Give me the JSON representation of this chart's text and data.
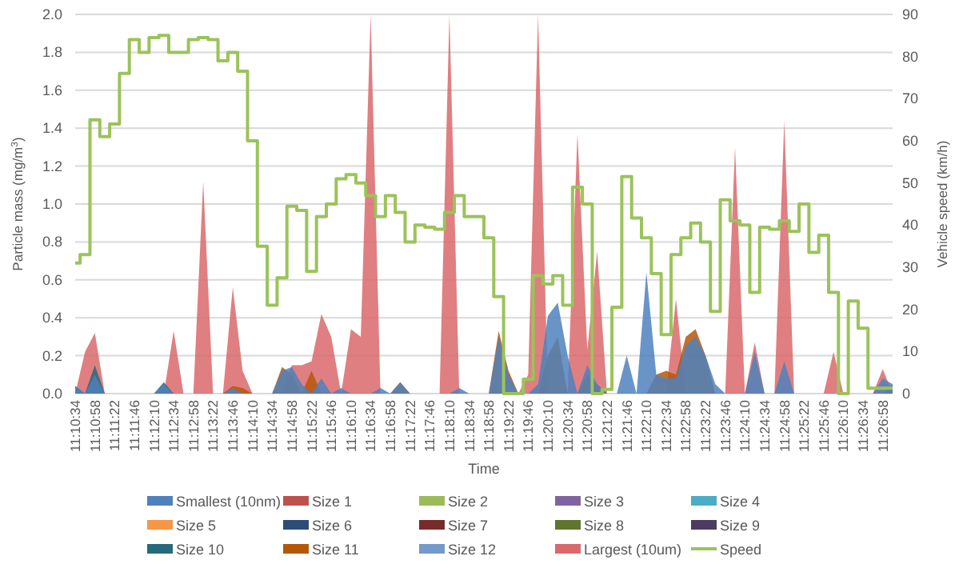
{
  "chart_data": {
    "type": "area",
    "xlabel": "Time",
    "ylabel": "Particle mass (mg/m$^{3}$)",
    "y2label": "Vehicle speed (km/h)",
    "categories": [
      "11:10:34",
      null,
      "11:10:58",
      null,
      "11:11:22",
      null,
      "11:11:46",
      null,
      "11:12:10",
      null,
      "11:12:34",
      null,
      "11:12:58",
      null,
      "11:13:22",
      null,
      "11:13:46",
      null,
      "11:14:10",
      null,
      "11:14:34",
      null,
      "11:14:58",
      null,
      "11:15:22",
      null,
      "11:15:46",
      null,
      "11:16:10",
      null,
      "11:16:34",
      null,
      "11:16:58",
      null,
      "11:17:22",
      null,
      "11:17:46",
      null,
      "11:18:10",
      null,
      "11:18:34",
      null,
      "11:18:58",
      null,
      "11:19:22",
      null,
      "11:19:46",
      null,
      "11:20:10",
      null,
      "11:20:34",
      null,
      "11:20:58",
      null,
      "11:21:22",
      null,
      "11:21:46",
      null,
      "11:22:10",
      null,
      "11:22:34",
      null,
      "11:22:58",
      null,
      "11:23:22",
      null,
      "11:23:46",
      null,
      "11:24:10",
      null,
      "11:24:34",
      null,
      "11:24:58",
      null,
      "11:25:22",
      null,
      "11:25:46",
      null,
      "11:26:10",
      null,
      "11:26:34",
      null,
      "11:26:58",
      null
    ],
    "ylim": [
      0,
      2
    ],
    "yticks": [
      {
        "value": 0,
        "label": "0.0"
      },
      {
        "value": 0.2,
        "label": "0.2"
      },
      {
        "value": 0.4,
        "label": "0.4"
      },
      {
        "value": 0.6,
        "label": "0.6"
      },
      {
        "value": 0.8,
        "label": "0.8"
      },
      {
        "value": 1,
        "label": "1.0"
      },
      {
        "value": 1.2,
        "label": "1.2"
      },
      {
        "value": 1.4,
        "label": "1.4"
      },
      {
        "value": 1.6,
        "label": "1.6"
      },
      {
        "value": 1.8,
        "label": "1.8"
      },
      {
        "value": 2,
        "label": "2.0"
      }
    ],
    "y2lim": [
      0,
      90
    ],
    "y2ticks": [
      0,
      10,
      20,
      30,
      40,
      50,
      60,
      70,
      80,
      90
    ],
    "grid": "y",
    "legend": "bottom",
    "series": [
      {
        "name": "Smallest (10nm)",
        "color": "#4f81bd",
        "values": [
          0.04,
          0,
          0.1,
          0,
          0,
          0,
          0,
          0,
          0,
          0.05,
          0,
          0,
          0,
          0,
          0,
          0,
          0.03,
          0,
          0,
          0,
          0,
          0.12,
          0.14,
          0.05,
          0,
          0.08,
          0,
          0.03,
          0,
          0,
          0,
          0.03,
          0,
          0.06,
          0,
          0,
          0,
          0,
          0,
          0.03,
          0,
          0,
          0,
          0.3,
          0.1,
          0,
          0,
          0.05,
          0.41,
          0.48,
          0.2,
          0,
          0.15,
          0.05,
          0,
          0,
          0.2,
          0,
          0.64,
          0.1,
          0.08,
          0.08,
          0.25,
          0.3,
          0.2,
          0.05,
          0,
          0,
          0,
          0.22,
          0,
          0,
          0.17,
          0,
          0,
          0,
          0,
          0,
          0,
          0,
          0,
          0,
          0.08,
          0.05
        ]
      },
      {
        "name": "Size 1",
        "color": "#c0504d",
        "values": [
          null,
          null,
          null,
          null,
          null,
          null,
          null,
          null,
          null,
          null,
          null,
          null,
          null,
          null,
          null,
          null,
          null,
          null,
          null,
          null,
          null,
          null,
          null,
          null,
          null,
          null,
          null,
          null,
          null,
          null,
          null,
          null,
          null,
          null,
          null,
          null,
          null,
          null,
          null,
          null,
          null,
          null,
          null,
          null,
          null,
          null,
          null,
          null,
          null,
          null,
          null,
          null,
          null,
          null,
          null,
          null,
          null,
          null,
          null,
          null,
          null,
          null,
          null,
          null,
          null,
          null,
          null,
          null,
          null,
          null,
          null,
          null,
          null,
          null,
          null,
          null,
          null,
          null,
          null,
          null,
          null,
          null,
          null,
          null
        ]
      },
      {
        "name": "Size 2",
        "color": "#9bbb59",
        "values": [
          null,
          null,
          null,
          null,
          null,
          null,
          null,
          null,
          null,
          null,
          null,
          null,
          null,
          null,
          null,
          null,
          null,
          null,
          null,
          null,
          null,
          null,
          null,
          null,
          null,
          null,
          null,
          null,
          null,
          null,
          null,
          null,
          null,
          null,
          null,
          null,
          null,
          null,
          null,
          null,
          null,
          null,
          null,
          null,
          null,
          null,
          null,
          null,
          null,
          null,
          null,
          null,
          null,
          null,
          null,
          null,
          null,
          null,
          null,
          null,
          null,
          null,
          null,
          null,
          null,
          null,
          null,
          null,
          null,
          null,
          null,
          null,
          null,
          null,
          null,
          null,
          null,
          null,
          null,
          null,
          null,
          null,
          null,
          null
        ]
      },
      {
        "name": "Size 3",
        "color": "#8064a2",
        "values": [
          null,
          null,
          null,
          null,
          null,
          null,
          null,
          null,
          null,
          null,
          null,
          null,
          null,
          null,
          null,
          null,
          null,
          null,
          null,
          null,
          null,
          null,
          null,
          null,
          null,
          null,
          null,
          null,
          null,
          null,
          null,
          null,
          null,
          null,
          null,
          null,
          null,
          null,
          null,
          null,
          null,
          null,
          null,
          null,
          null,
          null,
          null,
          null,
          null,
          null,
          null,
          null,
          null,
          null,
          null,
          null,
          null,
          null,
          null,
          null,
          null,
          null,
          null,
          null,
          null,
          null,
          null,
          null,
          null,
          null,
          null,
          null,
          null,
          null,
          null,
          null,
          null,
          null,
          null,
          null,
          null,
          null,
          null,
          null
        ]
      },
      {
        "name": "Size 4",
        "color": "#4bacc6",
        "values": [
          null,
          null,
          null,
          null,
          null,
          null,
          null,
          null,
          null,
          null,
          null,
          null,
          null,
          null,
          null,
          null,
          null,
          null,
          null,
          null,
          null,
          null,
          null,
          null,
          null,
          null,
          null,
          null,
          null,
          null,
          null,
          null,
          null,
          null,
          null,
          null,
          null,
          null,
          null,
          null,
          null,
          null,
          null,
          null,
          null,
          null,
          null,
          null,
          null,
          null,
          null,
          null,
          null,
          null,
          null,
          null,
          null,
          null,
          null,
          null,
          null,
          null,
          null,
          null,
          null,
          null,
          null,
          null,
          null,
          null,
          null,
          null,
          null,
          null,
          null,
          null,
          null,
          null,
          null,
          null,
          null,
          null,
          null,
          null
        ]
      },
      {
        "name": "Size 5",
        "color": "#f79646",
        "values": [
          null,
          null,
          null,
          null,
          null,
          null,
          null,
          null,
          null,
          null,
          null,
          null,
          null,
          null,
          null,
          null,
          null,
          null,
          null,
          null,
          null,
          null,
          null,
          null,
          null,
          null,
          null,
          null,
          null,
          null,
          null,
          null,
          null,
          null,
          null,
          null,
          null,
          null,
          null,
          null,
          null,
          null,
          null,
          null,
          null,
          null,
          null,
          null,
          null,
          null,
          null,
          null,
          null,
          null,
          null,
          null,
          null,
          null,
          null,
          null,
          null,
          null,
          null,
          null,
          null,
          null,
          null,
          null,
          null,
          null,
          null,
          null,
          null,
          null,
          null,
          null,
          null,
          null,
          null,
          null,
          null,
          null,
          null,
          null
        ]
      },
      {
        "name": "Size 6",
        "color": "#2c4d75",
        "values": [
          null,
          null,
          null,
          null,
          null,
          null,
          null,
          null,
          null,
          null,
          null,
          null,
          null,
          null,
          null,
          null,
          null,
          null,
          null,
          null,
          null,
          null,
          null,
          null,
          null,
          null,
          null,
          null,
          null,
          null,
          null,
          null,
          null,
          null,
          null,
          null,
          null,
          null,
          null,
          null,
          null,
          null,
          null,
          null,
          null,
          null,
          null,
          null,
          null,
          null,
          null,
          null,
          null,
          null,
          null,
          null,
          null,
          null,
          null,
          null,
          null,
          null,
          null,
          null,
          null,
          null,
          null,
          null,
          null,
          null,
          null,
          null,
          null,
          null,
          null,
          null,
          null,
          null,
          null,
          null,
          null,
          null,
          null,
          null
        ]
      },
      {
        "name": "Size 7",
        "color": "#772c2a",
        "values": [
          null,
          null,
          null,
          null,
          null,
          null,
          null,
          null,
          null,
          null,
          null,
          null,
          null,
          null,
          null,
          null,
          null,
          null,
          null,
          null,
          null,
          null,
          null,
          null,
          null,
          null,
          null,
          null,
          null,
          null,
          null,
          null,
          null,
          null,
          null,
          null,
          null,
          null,
          null,
          null,
          null,
          null,
          null,
          null,
          null,
          null,
          null,
          null,
          null,
          null,
          null,
          null,
          null,
          null,
          null,
          null,
          null,
          null,
          null,
          null,
          null,
          null,
          null,
          null,
          null,
          null,
          null,
          null,
          null,
          null,
          null,
          null,
          null,
          null,
          null,
          null,
          null,
          null,
          null,
          null,
          null,
          null,
          null,
          null
        ]
      },
      {
        "name": "Size 8",
        "color": "#5f7530",
        "values": [
          null,
          null,
          null,
          null,
          null,
          null,
          null,
          null,
          null,
          null,
          null,
          null,
          null,
          null,
          null,
          null,
          null,
          null,
          null,
          null,
          null,
          null,
          null,
          null,
          null,
          null,
          null,
          null,
          null,
          null,
          null,
          null,
          null,
          null,
          null,
          null,
          null,
          null,
          null,
          null,
          null,
          null,
          null,
          null,
          null,
          null,
          null,
          null,
          null,
          null,
          null,
          null,
          null,
          null,
          null,
          null,
          null,
          null,
          null,
          null,
          null,
          null,
          null,
          null,
          null,
          null,
          null,
          null,
          null,
          null,
          null,
          null,
          null,
          null,
          null,
          null,
          null,
          null,
          null,
          null,
          null,
          null,
          null,
          null
        ]
      },
      {
        "name": "Size 9",
        "color": "#4d3b62",
        "values": [
          null,
          null,
          null,
          null,
          null,
          null,
          null,
          null,
          null,
          null,
          null,
          null,
          null,
          null,
          null,
          null,
          null,
          null,
          null,
          null,
          null,
          null,
          null,
          null,
          null,
          null,
          null,
          null,
          null,
          null,
          null,
          null,
          null,
          null,
          null,
          null,
          null,
          null,
          null,
          null,
          null,
          null,
          null,
          null,
          null,
          null,
          null,
          null,
          null,
          null,
          null,
          null,
          null,
          null,
          null,
          null,
          null,
          null,
          null,
          null,
          null,
          null,
          null,
          null,
          null,
          null,
          null,
          null,
          null,
          null,
          null,
          null,
          null,
          null,
          null,
          null,
          null,
          null,
          null,
          null,
          null,
          null,
          null,
          null
        ]
      },
      {
        "name": "Size 10",
        "color": "#276a7c",
        "values": [
          0.04,
          0,
          0.15,
          0,
          0,
          0,
          0,
          0,
          0,
          0.06,
          0,
          0,
          0,
          0,
          0,
          0,
          0,
          0,
          0,
          0,
          0,
          0,
          0,
          0,
          0,
          0,
          0,
          0,
          0,
          0,
          0,
          0,
          0,
          0,
          0,
          0,
          0,
          0,
          0,
          0,
          0,
          0,
          0,
          0,
          0,
          0,
          0,
          0,
          0,
          0,
          0,
          0,
          0,
          0,
          0,
          0,
          0,
          0,
          0,
          0,
          0,
          0,
          0,
          0,
          0,
          0,
          0,
          0,
          0,
          0,
          0,
          0,
          0,
          0,
          0,
          0,
          0,
          0,
          0,
          0,
          0,
          0,
          0,
          0
        ]
      },
      {
        "name": "Size 11",
        "color": "#b65708",
        "values": [
          0,
          0,
          0.1,
          0,
          0,
          0,
          0,
          0,
          0,
          0.02,
          0,
          0,
          0,
          0,
          0,
          0,
          0.04,
          0.03,
          0,
          0,
          0,
          0.14,
          0.1,
          0,
          0.12,
          0,
          0,
          0,
          0,
          0,
          0,
          0,
          0,
          0.06,
          0,
          0,
          0,
          0,
          0,
          0,
          0,
          0,
          0,
          0.33,
          0.12,
          0,
          0,
          0,
          0.2,
          0.3,
          0,
          0,
          0.1,
          0.05,
          0,
          0,
          0,
          0,
          0,
          0.1,
          0.12,
          0.1,
          0.3,
          0.34,
          0.2,
          0,
          0,
          0,
          0,
          0,
          0,
          0,
          0,
          0,
          0,
          0,
          0,
          0,
          0,
          0,
          0,
          0,
          0,
          0.05
        ]
      },
      {
        "name": "Size 12",
        "color": "#729aca",
        "values": [
          null,
          null,
          null,
          null,
          null,
          null,
          null,
          null,
          null,
          null,
          null,
          null,
          null,
          null,
          null,
          null,
          null,
          null,
          null,
          null,
          null,
          null,
          null,
          null,
          null,
          null,
          null,
          null,
          null,
          null,
          null,
          null,
          null,
          null,
          null,
          null,
          null,
          null,
          null,
          null,
          null,
          null,
          null,
          null,
          null,
          null,
          null,
          null,
          null,
          null,
          null,
          null,
          null,
          null,
          null,
          null,
          null,
          null,
          null,
          null,
          null,
          null,
          null,
          null,
          null,
          null,
          null,
          null,
          null,
          null,
          null,
          null,
          null,
          null,
          null,
          null,
          null,
          null,
          null,
          null,
          null,
          null,
          null,
          null
        ]
      },
      {
        "name": "Largest (10um)",
        "color": "#d9696b",
        "values": [
          0,
          0.22,
          0.32,
          0,
          0,
          0,
          0,
          0,
          0,
          0,
          0.33,
          0,
          0,
          1.12,
          0,
          0,
          0.56,
          0.12,
          0,
          0,
          0,
          0,
          0.15,
          0.15,
          0.17,
          0.42,
          0.3,
          0,
          0.34,
          0.3,
          2,
          0,
          0,
          0,
          0,
          0,
          0,
          0,
          2,
          0,
          0,
          0,
          0,
          0,
          0,
          0,
          0.1,
          2,
          0,
          0,
          0,
          1.37,
          0.23,
          0.75,
          0,
          0,
          0,
          0,
          0,
          0,
          0,
          0.5,
          0,
          0,
          0,
          0,
          0,
          1.3,
          0,
          0.27,
          0,
          0,
          1.44,
          0,
          0,
          0,
          0,
          0.22,
          0,
          0,
          0,
          0,
          0.13,
          0
        ]
      },
      {
        "name": "Speed",
        "type": "step",
        "axis": "y2",
        "color": "#9bc35a",
        "values": [
          31,
          33,
          65,
          61,
          64,
          76,
          84,
          81,
          84.5,
          85,
          81,
          81,
          84,
          84.5,
          84,
          79,
          81,
          76.5,
          60,
          35,
          21,
          27.5,
          44.5,
          43.5,
          29,
          42,
          45,
          51,
          52,
          50,
          47,
          42,
          47,
          43,
          36,
          40,
          39.5,
          39,
          43,
          47,
          42,
          42,
          37,
          23,
          0,
          0,
          3.4,
          28,
          26,
          28,
          21,
          49,
          45,
          0,
          1,
          20.5,
          51.5,
          41.7,
          37,
          28.5,
          14,
          33,
          37,
          40.5,
          36,
          19.5,
          46,
          41,
          40,
          24,
          39.5,
          39,
          41,
          38.5,
          45,
          33.5,
          37.6,
          24,
          0,
          22,
          15.5,
          1.3,
          1.3,
          1.3
        ]
      }
    ]
  }
}
